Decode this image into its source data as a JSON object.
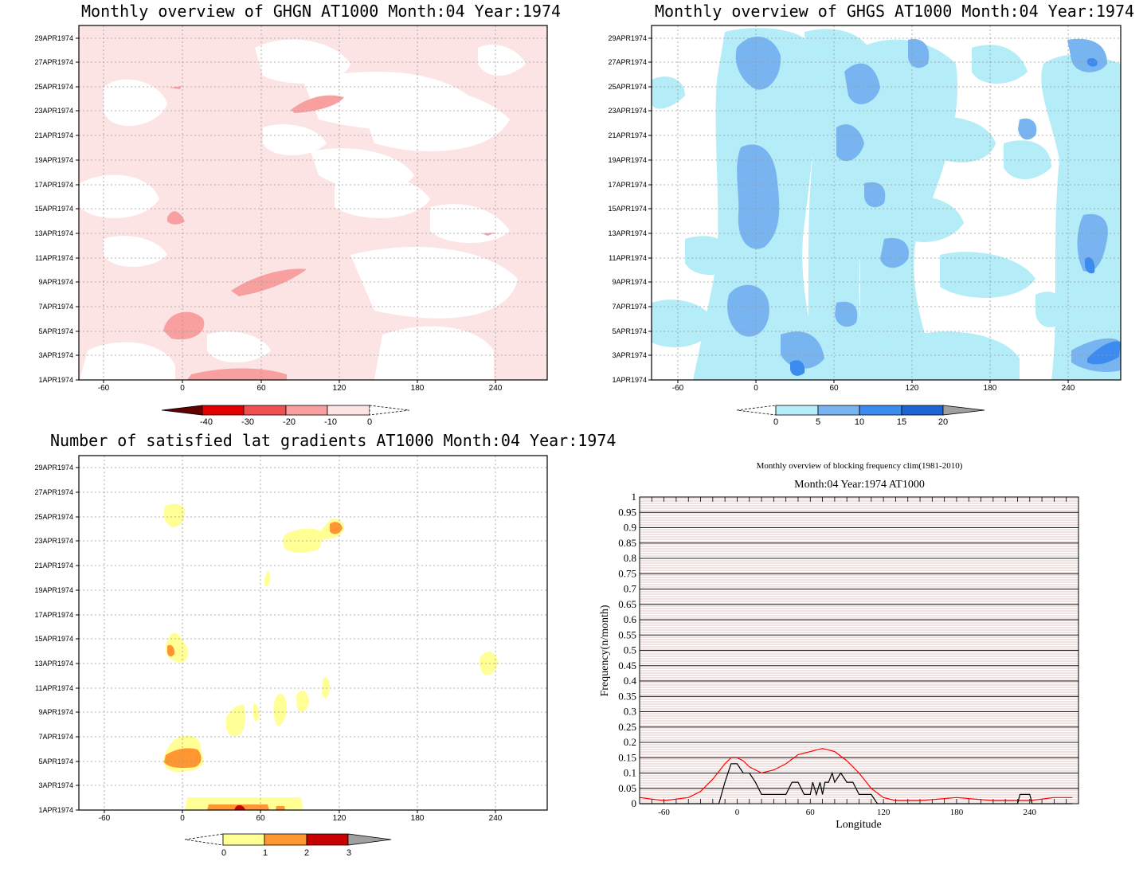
{
  "panels": {
    "ghgn": {
      "title": "Monthly overview of GHGN AT1000 Month:04 Year:1974",
      "y_ticks": [
        "1APR1974",
        "3APR1974",
        "5APR1974",
        "7APR1974",
        "9APR1974",
        "11APR1974",
        "13APR1974",
        "15APR1974",
        "17APR1974",
        "19APR1974",
        "21APR1974",
        "23APR1974",
        "25APR1974",
        "27APR1974",
        "29APR1974"
      ],
      "x_ticks": [
        "-60",
        "0",
        "60",
        "120",
        "180",
        "240"
      ],
      "colorbar": {
        "labels": [
          "-40",
          "-30",
          "-20",
          "-10",
          "0"
        ],
        "colors": [
          "#e00000",
          "#f05050",
          "#f8a0a0",
          "#fde4e4"
        ],
        "low_color": "#600000",
        "high_color": "#ffffff"
      }
    },
    "ghgs": {
      "title": "Monthly overview of GHGS AT1000 Month:04 Year:1974",
      "y_ticks": [
        "1APR1974",
        "3APR1974",
        "5APR1974",
        "7APR1974",
        "9APR1974",
        "11APR1974",
        "13APR1974",
        "15APR1974",
        "17APR1974",
        "19APR1974",
        "21APR1974",
        "23APR1974",
        "25APR1974",
        "27APR1974",
        "29APR1974"
      ],
      "x_ticks": [
        "-60",
        "0",
        "60",
        "120",
        "180",
        "240"
      ],
      "colorbar": {
        "labels": [
          "0",
          "5",
          "10",
          "15",
          "20"
        ],
        "colors": [
          "#b4ecf8",
          "#78b4f0",
          "#3c8cf0",
          "#1e64d2"
        ],
        "low_color": "#ffffff",
        "high_color": "#a0a0a0"
      }
    },
    "lat": {
      "title": "Number of satisfied lat gradients AT1000 Month:04 Year:1974",
      "y_ticks": [
        "1APR1974",
        "3APR1974",
        "5APR1974",
        "7APR1974",
        "9APR1974",
        "11APR1974",
        "13APR1974",
        "15APR1974",
        "17APR1974",
        "19APR1974",
        "21APR1974",
        "23APR1974",
        "25APR1974",
        "27APR1974",
        "29APR1974"
      ],
      "x_ticks": [
        "-60",
        "0",
        "60",
        "120",
        "180",
        "240"
      ],
      "colorbar": {
        "labels": [
          "0",
          "1",
          "2",
          "3"
        ],
        "colors": [
          "#ffff96",
          "#ff9632",
          "#c80000"
        ],
        "low_color": "#ffffff",
        "high_color": "#a0a0a0"
      }
    },
    "freq": {
      "title": "Monthly overview of blocking frequency clim(1981-2010)",
      "subtitle": "Month:04 Year:1974  AT1000",
      "xlabel": "Longitude",
      "ylabel": "Frequency(n/month)"
    }
  },
  "chart_data": [
    {
      "type": "heatmap",
      "title": "Monthly overview of GHGN AT1000 Month:04 Year:1974",
      "x_range": [
        -80,
        280
      ],
      "y_range": [
        "1APR1974",
        "30APR1974"
      ],
      "levels": [
        -40,
        -30,
        -20,
        -10,
        0
      ],
      "regions": [
        {
          "level": "-20..-10",
          "center": [
            0,
            "5APR1974"
          ]
        },
        {
          "level": "-20..-10",
          "center": [
            75,
            "9APR1974"
          ]
        },
        {
          "level": "-20..-10",
          "center": [
            -5,
            "15APR1974"
          ]
        },
        {
          "level": "-20..-10",
          "center": [
            110,
            "23APR1974"
          ]
        },
        {
          "level": "-20..-10",
          "center": [
            60,
            "1APR1974"
          ]
        }
      ]
    },
    {
      "type": "heatmap",
      "title": "Monthly overview of GHGS AT1000 Month:04 Year:1974",
      "x_range": [
        -80,
        280
      ],
      "y_range": [
        "1APR1974",
        "30APR1974"
      ],
      "levels": [
        0,
        5,
        10,
        15,
        20
      ],
      "regions": [
        {
          "level": "5..10",
          "center": [
            5,
            "17APR1974"
          ]
        },
        {
          "level": "5..10",
          "center": [
            0,
            "7APR1974"
          ]
        },
        {
          "level": "5..10",
          "center": [
            270,
            "3APR1974"
          ]
        },
        {
          "level": "5..10",
          "center": [
            90,
            "26APR1974"
          ]
        },
        {
          "level": "10..15",
          "center": [
            265,
            "11APR1974"
          ]
        }
      ]
    },
    {
      "type": "heatmap",
      "title": "Number of satisfied lat gradients AT1000 Month:04 Year:1974",
      "x_range": [
        -80,
        280
      ],
      "y_range": [
        "1APR1974",
        "30APR1974"
      ],
      "levels": [
        0,
        1,
        2,
        3
      ],
      "regions": [
        {
          "level": "0..1",
          "center": [
            -7,
            "25APR1974"
          ]
        },
        {
          "level": "1..2",
          "center": [
            118,
            "24APR1974"
          ]
        },
        {
          "level": "0..1",
          "center": [
            92,
            "23APR1974"
          ]
        },
        {
          "level": "1..2",
          "center": [
            -10,
            "14APR1974"
          ]
        },
        {
          "level": "0..1",
          "center": [
            237,
            "13APR1974"
          ]
        },
        {
          "level": "1..2",
          "center": [
            0,
            "5APR1974"
          ]
        },
        {
          "level": "2..3",
          "center": [
            45,
            "1APR1974"
          ]
        }
      ]
    },
    {
      "type": "line",
      "title": "Monthly overview of blocking frequency clim(1981-2010)",
      "subtitle": "Month:04 Year:1974  AT1000",
      "xlabel": "Longitude",
      "ylabel": "Frequency(n/month)",
      "xlim": [
        -80,
        280
      ],
      "ylim": [
        0,
        1
      ],
      "x_ticks": [
        -60,
        0,
        60,
        120,
        180,
        240
      ],
      "y_ticks": [
        0,
        0.05,
        0.1,
        0.15,
        0.2,
        0.25,
        0.3,
        0.35,
        0.4,
        0.45,
        0.5,
        0.55,
        0.6,
        0.65,
        0.7,
        0.75,
        0.8,
        0.85,
        0.9,
        0.95,
        1
      ],
      "series": [
        {
          "color": "#ff0000",
          "x": [
            -80,
            -60,
            -40,
            -30,
            -20,
            -10,
            -5,
            0,
            5,
            10,
            20,
            30,
            40,
            50,
            60,
            70,
            80,
            90,
            100,
            110,
            120,
            130,
            150,
            180,
            210,
            240,
            260,
            275
          ],
          "values": [
            0.02,
            0.01,
            0.02,
            0.04,
            0.08,
            0.13,
            0.15,
            0.15,
            0.14,
            0.12,
            0.1,
            0.11,
            0.13,
            0.16,
            0.17,
            0.18,
            0.17,
            0.14,
            0.1,
            0.05,
            0.02,
            0.01,
            0.01,
            0.02,
            0.01,
            0.01,
            0.02,
            0.02
          ]
        },
        {
          "color": "#000000",
          "x": [
            -80,
            -15,
            -10,
            -5,
            0,
            5,
            10,
            15,
            20,
            25,
            30,
            40,
            45,
            50,
            55,
            60,
            62,
            65,
            68,
            70,
            72,
            75,
            78,
            80,
            85,
            90,
            95,
            100,
            105,
            110,
            115,
            230,
            232,
            240,
            242,
            275
          ],
          "values": [
            0,
            0,
            0.07,
            0.13,
            0.13,
            0.1,
            0.1,
            0.07,
            0.03,
            0.03,
            0.03,
            0.03,
            0.07,
            0.07,
            0.03,
            0.03,
            0.07,
            0.03,
            0.07,
            0.03,
            0.07,
            0.07,
            0.1,
            0.07,
            0.1,
            0.07,
            0.07,
            0.03,
            0.03,
            0.03,
            0,
            0,
            0.03,
            0.03,
            0,
            0
          ]
        }
      ]
    }
  ]
}
